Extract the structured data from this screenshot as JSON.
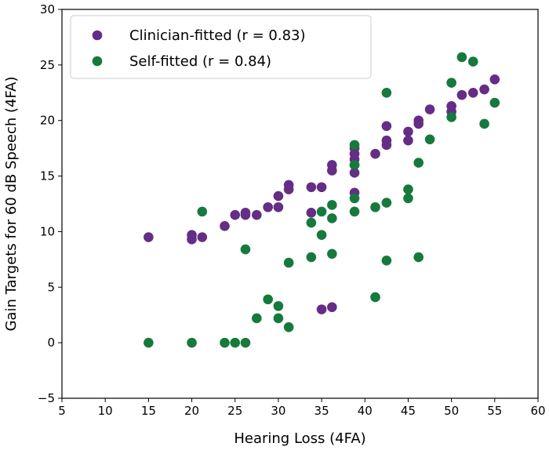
{
  "chart_data": {
    "type": "scatter",
    "title": "",
    "xlabel": "Hearing Loss (4FA)",
    "ylabel": "Gain Targets for 60 dB Speech (4FA)",
    "xlim": [
      5,
      60
    ],
    "ylim": [
      -5,
      30
    ],
    "xticks": [
      5,
      10,
      15,
      20,
      25,
      30,
      35,
      40,
      45,
      50,
      55,
      60
    ],
    "yticks": [
      -5,
      0,
      5,
      10,
      15,
      20,
      25,
      30
    ],
    "grid": false,
    "legend_position": "top-left",
    "series": [
      {
        "name": "Clinician-fitted (r = 0.83)",
        "color": "#652D86",
        "points": [
          [
            15,
            9.5
          ],
          [
            20,
            9.7
          ],
          [
            20,
            9.3
          ],
          [
            21.2,
            9.5
          ],
          [
            23.8,
            10.5
          ],
          [
            25,
            11.5
          ],
          [
            26.2,
            11.5
          ],
          [
            26.2,
            11.7
          ],
          [
            27.5,
            11.5
          ],
          [
            28.8,
            12.2
          ],
          [
            30,
            12.2
          ],
          [
            30,
            13.2
          ],
          [
            31.2,
            13.8
          ],
          [
            31.2,
            14.2
          ],
          [
            33.8,
            14.0
          ],
          [
            33.8,
            11.7
          ],
          [
            35,
            14.0
          ],
          [
            35,
            3.0
          ],
          [
            36.2,
            15.5
          ],
          [
            36.2,
            16.0
          ],
          [
            36.2,
            3.2
          ],
          [
            38.8,
            13.5
          ],
          [
            38.8,
            15.3
          ],
          [
            38.8,
            16.0
          ],
          [
            38.8,
            16.5
          ],
          [
            38.8,
            17.0
          ],
          [
            38.8,
            17.5
          ],
          [
            41.2,
            17.0
          ],
          [
            42.5,
            17.8
          ],
          [
            42.5,
            18.2
          ],
          [
            42.5,
            19.5
          ],
          [
            45,
            18.2
          ],
          [
            45,
            19.0
          ],
          [
            46.2,
            19.7
          ],
          [
            46.2,
            20.0
          ],
          [
            47.5,
            21.0
          ],
          [
            50,
            20.8
          ],
          [
            50,
            21.3
          ],
          [
            51.2,
            22.3
          ],
          [
            52.5,
            22.5
          ],
          [
            53.8,
            22.8
          ],
          [
            55,
            23.7
          ]
        ]
      },
      {
        "name": "Self-fitted (r = 0.84)",
        "color": "#157A3C",
        "points": [
          [
            15,
            0
          ],
          [
            20,
            0
          ],
          [
            21.2,
            11.8
          ],
          [
            23.8,
            0
          ],
          [
            25,
            0
          ],
          [
            26.2,
            0
          ],
          [
            26.2,
            8.4
          ],
          [
            27.5,
            2.2
          ],
          [
            28.8,
            3.9
          ],
          [
            30,
            2.2
          ],
          [
            30,
            3.3
          ],
          [
            31.2,
            1.4
          ],
          [
            31.2,
            7.2
          ],
          [
            33.8,
            7.7
          ],
          [
            33.8,
            10.8
          ],
          [
            35,
            9.7
          ],
          [
            35,
            11.8
          ],
          [
            36.2,
            8.0
          ],
          [
            36.2,
            11.2
          ],
          [
            36.2,
            12.4
          ],
          [
            38.8,
            11.8
          ],
          [
            38.8,
            13.0
          ],
          [
            38.8,
            16.0
          ],
          [
            38.8,
            17.8
          ],
          [
            41.2,
            4.1
          ],
          [
            41.2,
            12.2
          ],
          [
            42.5,
            7.4
          ],
          [
            42.5,
            12.6
          ],
          [
            42.5,
            22.5
          ],
          [
            45,
            13.0
          ],
          [
            45,
            13.8
          ],
          [
            46.2,
            7.7
          ],
          [
            46.2,
            16.2
          ],
          [
            47.5,
            18.3
          ],
          [
            50,
            20.3
          ],
          [
            50,
            23.4
          ],
          [
            51.2,
            25.7
          ],
          [
            52.5,
            25.3
          ],
          [
            53.8,
            19.7
          ],
          [
            55,
            21.6
          ]
        ]
      }
    ]
  }
}
